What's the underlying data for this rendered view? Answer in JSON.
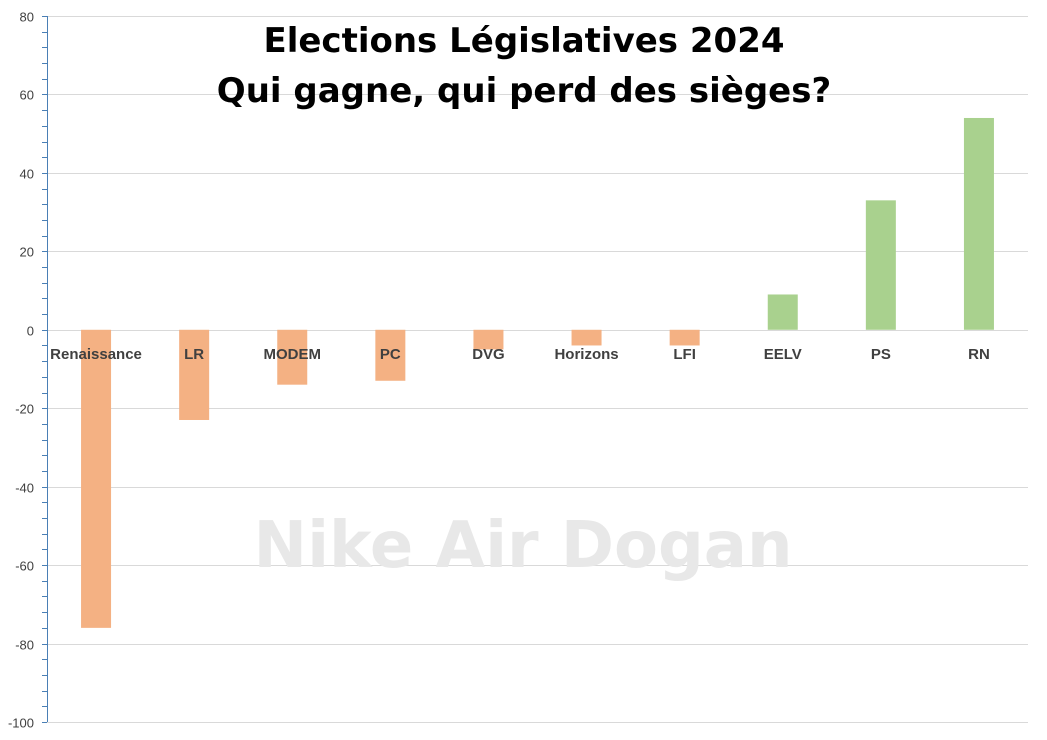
{
  "chart_data": {
    "type": "bar",
    "title_lines": [
      "Elections Législatives 2024",
      "Qui gagne, qui perd des sièges?"
    ],
    "watermark": "Nike Air Dogan",
    "categories": [
      "Renaissance",
      "LR",
      "MODEM",
      "PC",
      "DVG",
      "Horizons",
      "LFI",
      "EELV",
      "PS",
      "RN"
    ],
    "values": [
      -76,
      -23,
      -14,
      -13,
      -5,
      -4,
      -4,
      9,
      33,
      54
    ],
    "ylim": [
      -100,
      80
    ],
    "yticks": [
      80,
      60,
      40,
      20,
      0,
      -20,
      -40,
      -60,
      -80,
      -100
    ],
    "gridlines": true,
    "colors": {
      "negative": "#f4b183",
      "positive": "#a9d18e",
      "grid": "#d9d9d9",
      "axis": "#4a7fb5"
    }
  }
}
